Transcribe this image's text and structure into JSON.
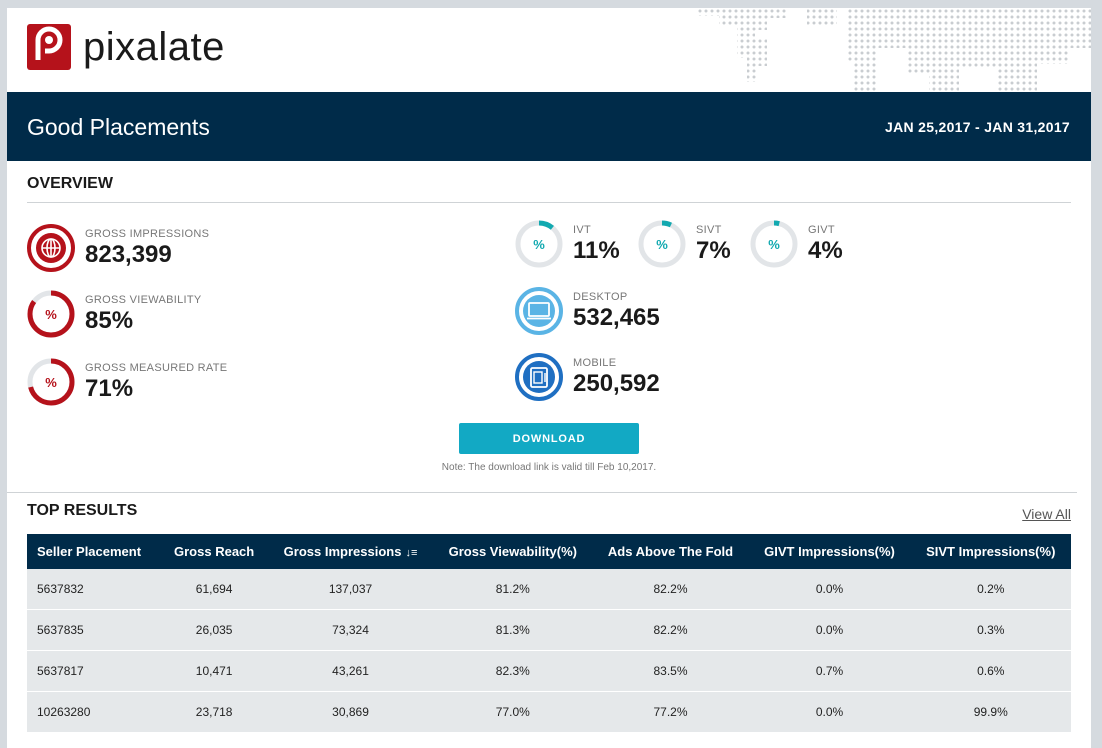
{
  "brand": {
    "name": "pixalate",
    "color": "#b5121b"
  },
  "report": {
    "title": "Good Placements",
    "date_range": "JAN 25,2017 - JAN 31,2017"
  },
  "overview": {
    "title": "OVERVIEW",
    "gross_impressions": {
      "label": "GROSS IMPRESSIONS",
      "value": "823,399",
      "icon": "globe-icon"
    },
    "gross_viewability": {
      "label": "GROSS VIEWABILITY",
      "value": "85%",
      "fraction": 0.85,
      "symbol": "%"
    },
    "gross_measured_rate": {
      "label": "GROSS MEASURED RATE",
      "value": "71%",
      "fraction": 0.71,
      "symbol": "%"
    },
    "ivt": {
      "label": "IVT",
      "value": "11%",
      "fraction": 0.11,
      "symbol": "%"
    },
    "sivt": {
      "label": "SIVT",
      "value": "7%",
      "fraction": 0.07,
      "symbol": "%"
    },
    "givt": {
      "label": "GIVT",
      "value": "4%",
      "fraction": 0.04,
      "symbol": "%"
    },
    "desktop": {
      "label": "DESKTOP",
      "value": "532,465",
      "icon": "desktop-icon"
    },
    "mobile": {
      "label": "MOBILE",
      "value": "250,592",
      "icon": "mobile-icon"
    },
    "download_label": "DOWNLOAD",
    "note": "Note: The download link is valid till Feb 10,2017."
  },
  "top_results": {
    "title": "TOP RESULTS",
    "view_all": "View All",
    "columns": [
      "Seller Placement",
      "Gross Reach",
      "Gross Impressions",
      "Gross Viewability(%)",
      "Ads Above The Fold",
      "GIVT Impressions(%)",
      "SIVT Impressions(%)"
    ],
    "rows": [
      [
        "5637832",
        "61,694",
        "137,037",
        "81.2%",
        "82.2%",
        "0.0%",
        "0.2%"
      ],
      [
        "5637835",
        "26,035",
        "73,324",
        "81.3%",
        "82.2%",
        "0.0%",
        "0.3%"
      ],
      [
        "5637817",
        "10,471",
        "43,261",
        "82.3%",
        "83.5%",
        "0.7%",
        "0.6%"
      ],
      [
        "10263280",
        "23,718",
        "30,869",
        "77.0%",
        "77.2%",
        "0.0%",
        "99.9%"
      ]
    ]
  },
  "colors": {
    "navy": "#002b49",
    "red": "#b5121b",
    "teal": "#12a9b0",
    "light_blue": "#5ab4e5",
    "blue": "#1f6fc2",
    "button": "#12a9c4"
  }
}
